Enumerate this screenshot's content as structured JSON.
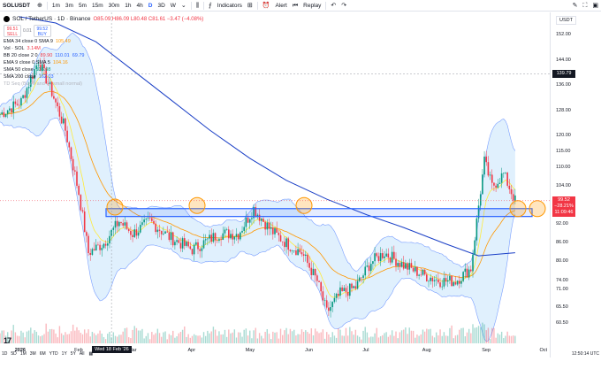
{
  "toolbar": {
    "symbol": "SOLUSDT",
    "intervals": [
      "1m",
      "3m",
      "5m",
      "15m",
      "30m",
      "1h",
      "4h",
      "D",
      "3D",
      "W"
    ],
    "active_interval": "D",
    "indicators_label": "Indicators",
    "alert_label": "Alert",
    "replay_label": "Replay"
  },
  "legend": {
    "title": "SOL / TetherUS · 1D · Binance",
    "ohlc": "O85.09 H86.09 L80.48 C81.61 −3.47 (−4.08%)",
    "sell_price": "99.51",
    "sell_label": "SELL",
    "spread": "0.01",
    "buy_price": "99.52",
    "buy_label": "BUY",
    "indicators": [
      {
        "name": "EMA 34 close 0 SMA 9",
        "values": [
          "105.49",
          ""
        ]
      },
      {
        "name": "Vol · SOL",
        "values": [
          "3.14M",
          ""
        ]
      },
      {
        "name": "BB 20 close 2 0",
        "values": [
          "89.90",
          "110.01",
          "69.79"
        ]
      },
      {
        "name": "EMA 9 close 0 SMA 5",
        "values": [
          "104.16",
          ""
        ]
      },
      {
        "name": "SMA 50 close",
        "values": [
          "136.98",
          ""
        ]
      },
      {
        "name": "SMA 200 close",
        "values": [
          "162.03",
          ""
        ]
      },
      {
        "name": "TD Seq (Buy 9 and 13 small normal)",
        "values": []
      }
    ]
  },
  "price_scale": {
    "currency": "USDT",
    "ticks": [
      "152.00",
      "144.00",
      "136.00",
      "128.00",
      "120.00",
      "115.00",
      "110.00",
      "104.00",
      "98.00",
      "92.00",
      "86.00",
      "80.00",
      "74.00",
      "71.00",
      "65.50",
      "60.50"
    ],
    "crosshair_price": "139.79",
    "last_price": "99.52",
    "last_change": "−28.21%",
    "last_countdown": "11:09:46"
  },
  "time_scale": {
    "ticks": [
      {
        "label": "2026",
        "bold": true
      },
      {
        "label": "Feb",
        "bold": false
      },
      {
        "label": "Mar",
        "bold": false
      },
      {
        "label": "Apr",
        "bold": false
      },
      {
        "label": "May",
        "bold": false
      },
      {
        "label": "Jun",
        "bold": false
      },
      {
        "label": "Jul",
        "bold": false
      },
      {
        "label": "Aug",
        "bold": false
      },
      {
        "label": "Sep",
        "bold": false
      },
      {
        "label": "Oct",
        "bold": false
      }
    ],
    "crosshair_date": "Wed 18 Feb '26"
  },
  "bottom_bar": {
    "ranges": [
      "1D",
      "5D",
      "1M",
      "3M",
      "6M",
      "YTD",
      "1Y",
      "5Y",
      "All"
    ],
    "clock": "12:50:14 UTC"
  },
  "colors": {
    "bull": "#089981",
    "bear": "#f23645",
    "bb_fill": "#bbdefb",
    "bb_line": "#2962ff",
    "sma200": "#1a3fc6",
    "ema34": "#ff9800",
    "ema9": "#ffeb3b",
    "zone": "#2962ff",
    "circle": "#ff9800"
  },
  "chart_data": {
    "type": "candlestick",
    "price_range": [
      57,
      156
    ],
    "resistance_zone": [
      94.5,
      97.0
    ],
    "circle_touch_prices": [
      97.5,
      98.0,
      98.0,
      97.0,
      97.0
    ],
    "price_path": [
      {
        "d": "2025-12-22",
        "p": 127
      },
      {
        "d": "2026-01-02",
        "p": 131
      },
      {
        "d": "2026-01-11",
        "p": 144
      },
      {
        "d": "2026-01-18",
        "p": 134
      },
      {
        "d": "2026-01-25",
        "p": 122
      },
      {
        "d": "2026-02-01",
        "p": 102
      },
      {
        "d": "2026-02-06",
        "p": 83
      },
      {
        "d": "2026-02-14",
        "p": 86
      },
      {
        "d": "2026-02-22",
        "p": 93
      },
      {
        "d": "2026-03-01",
        "p": 89
      },
      {
        "d": "2026-03-10",
        "p": 93
      },
      {
        "d": "2026-03-20",
        "p": 88
      },
      {
        "d": "2026-04-01",
        "p": 84
      },
      {
        "d": "2026-04-15",
        "p": 89
      },
      {
        "d": "2026-04-25",
        "p": 89
      },
      {
        "d": "2026-05-03",
        "p": 97
      },
      {
        "d": "2026-05-12",
        "p": 90
      },
      {
        "d": "2026-05-20",
        "p": 86
      },
      {
        "d": "2026-05-28",
        "p": 83
      },
      {
        "d": "2026-06-05",
        "p": 74
      },
      {
        "d": "2026-06-10",
        "p": 64
      },
      {
        "d": "2026-06-17",
        "p": 70
      },
      {
        "d": "2026-06-25",
        "p": 72
      },
      {
        "d": "2026-07-03",
        "p": 80
      },
      {
        "d": "2026-07-10",
        "p": 83
      },
      {
        "d": "2026-07-20",
        "p": 79
      },
      {
        "d": "2026-07-30",
        "p": 76
      },
      {
        "d": "2026-08-08",
        "p": 74
      },
      {
        "d": "2026-08-16",
        "p": 74
      },
      {
        "d": "2026-08-24",
        "p": 78
      },
      {
        "d": "2026-08-28",
        "p": 98
      },
      {
        "d": "2026-08-31",
        "p": 112
      },
      {
        "d": "2026-09-04",
        "p": 104
      },
      {
        "d": "2026-09-10",
        "p": 108
      },
      {
        "d": "2026-09-16",
        "p": 99.5
      }
    ],
    "sma200": [
      {
        "d": "2026-01-01",
        "p": 158
      },
      {
        "d": "2026-01-20",
        "p": 156
      },
      {
        "d": "2026-02-10",
        "p": 150
      },
      {
        "d": "2026-03-01",
        "p": 141
      },
      {
        "d": "2026-03-20",
        "p": 132
      },
      {
        "d": "2026-04-10",
        "p": 122
      },
      {
        "d": "2026-05-01",
        "p": 113
      },
      {
        "d": "2026-05-20",
        "p": 106
      },
      {
        "d": "2026-06-10",
        "p": 100
      },
      {
        "d": "2026-07-01",
        "p": 95
      },
      {
        "d": "2026-07-20",
        "p": 91
      },
      {
        "d": "2026-08-10",
        "p": 86
      },
      {
        "d": "2026-08-28",
        "p": 82
      },
      {
        "d": "2026-09-16",
        "p": 83
      }
    ]
  }
}
